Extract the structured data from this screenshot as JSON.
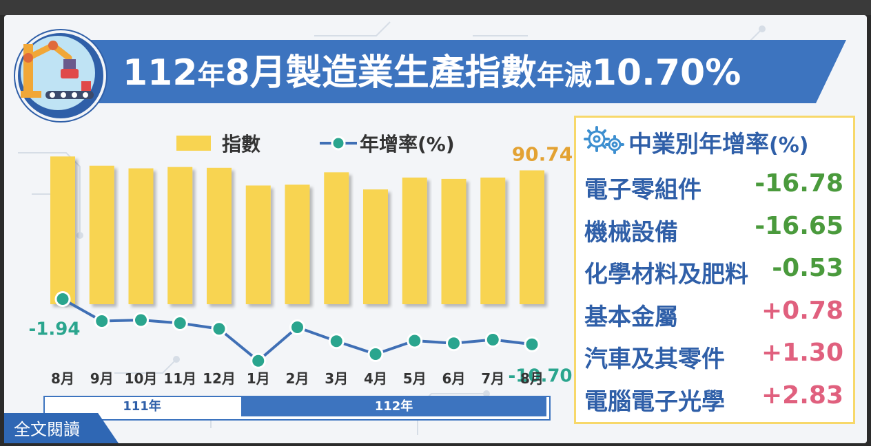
{
  "header": {
    "title_parts": [
      {
        "text": "112",
        "size": "big"
      },
      {
        "text": "年",
        "size": "small"
      },
      {
        "text": "8",
        "size": "big"
      },
      {
        "text": "月製造業生產指數",
        "size": "big"
      },
      {
        "text": "年減",
        "size": "small"
      },
      {
        "text": "10.70%",
        "size": "big"
      }
    ]
  },
  "legend": {
    "index_label": "指數",
    "growth_label": "年增率(%)"
  },
  "chart_data": {
    "type": "bar",
    "categories": [
      "8月",
      "9月",
      "10月",
      "11月",
      "12月",
      "1月",
      "2月",
      "3月",
      "4月",
      "5月",
      "6月",
      "7月",
      "8月"
    ],
    "series": [
      {
        "name": "指數",
        "type": "bar",
        "values": [
          96.0,
          92.5,
          91.5,
          92.0,
          91.7,
          85.0,
          85.3,
          90.0,
          83.5,
          88.0,
          87.5,
          88.0,
          90.74
        ],
        "labels": {
          "12": "90.74"
        }
      },
      {
        "name": "年增率(%)",
        "type": "line",
        "values": [
          -1.94,
          -6.2,
          -6.0,
          -6.6,
          -7.7,
          -13.9,
          -7.4,
          -10.1,
          -12.6,
          -10.0,
          -10.5,
          -9.8,
          -10.7
        ],
        "labels": {
          "0": "-1.94",
          "12": "-10.70"
        }
      }
    ],
    "year_groups": [
      {
        "label": "111年",
        "span": 5
      },
      {
        "label": "112年",
        "span": 8
      }
    ],
    "ylim_index": [
      40,
      100
    ],
    "ylim_growth": [
      -16,
      0
    ],
    "colors": {
      "bar": "#f8d451",
      "line": "#3f6fb5",
      "marker": "#2aa58e",
      "index_label": "#e3a233",
      "growth_label": "#2aa58e"
    }
  },
  "panel": {
    "title": "中業別年增率",
    "title_unit": "(%)",
    "rows": [
      {
        "name": "電子零組件",
        "value": "-16.78",
        "color": "#4a9a3c"
      },
      {
        "name": "機械設備",
        "value": "-16.65",
        "color": "#4a9a3c"
      },
      {
        "name": "化學材料及肥料",
        "value": "-0.53",
        "color": "#4a9a3c"
      },
      {
        "name": "基本金屬",
        "value": "+0.78",
        "color": "#e0607e"
      },
      {
        "name": "汽車及其零件",
        "value": "+1.30",
        "color": "#e0607e"
      },
      {
        "name": "電腦電子光學",
        "value": "+2.83",
        "color": "#e0607e"
      }
    ]
  },
  "footer": {
    "read_full": "全文閱讀"
  }
}
